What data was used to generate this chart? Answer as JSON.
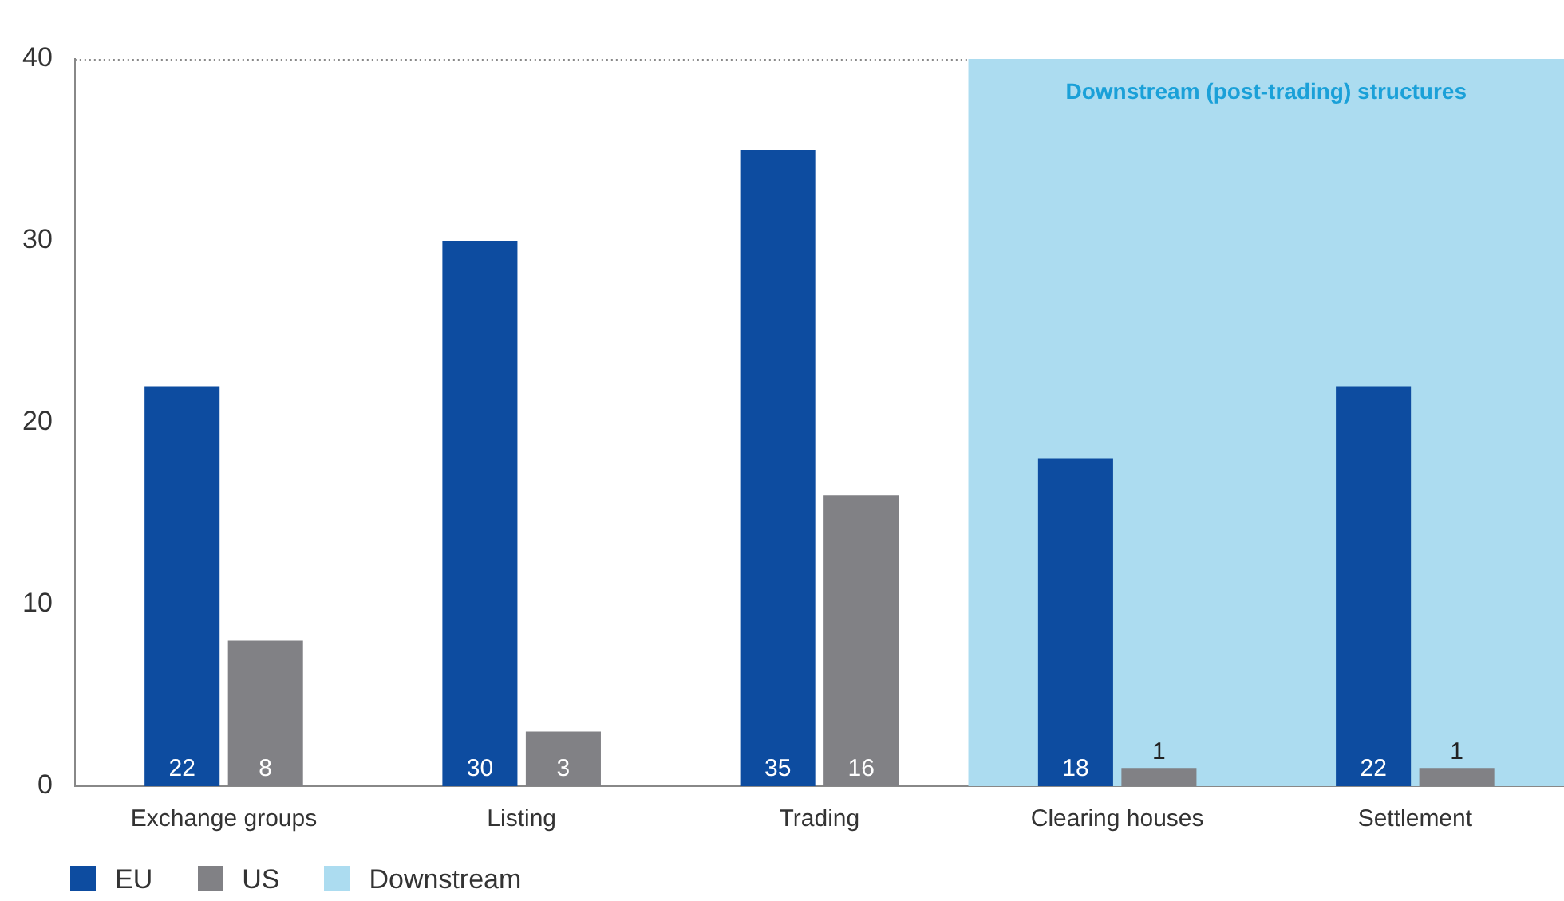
{
  "chart_data": {
    "type": "bar",
    "categories": [
      "Exchange groups",
      "Listing",
      "Trading",
      "Clearing houses",
      "Settlement"
    ],
    "series": [
      {
        "name": "EU",
        "color": "#0d4ca0",
        "values": [
          22,
          30,
          35,
          18,
          22
        ]
      },
      {
        "name": "US",
        "color": "#818185",
        "values": [
          8,
          3,
          16,
          1,
          1
        ]
      }
    ],
    "ylim": [
      0,
      40
    ],
    "yticks": [
      0,
      10,
      20,
      30,
      40
    ],
    "grid": false,
    "legend": "bottom left",
    "data_labels": true,
    "bands": [
      {
        "axis": "x",
        "from": "Clearing houses",
        "to": "Settlement",
        "label": "Downstream (post-trading) structures",
        "color": "#acdcf0"
      }
    ],
    "annotations": [
      "Downstream"
    ]
  }
}
